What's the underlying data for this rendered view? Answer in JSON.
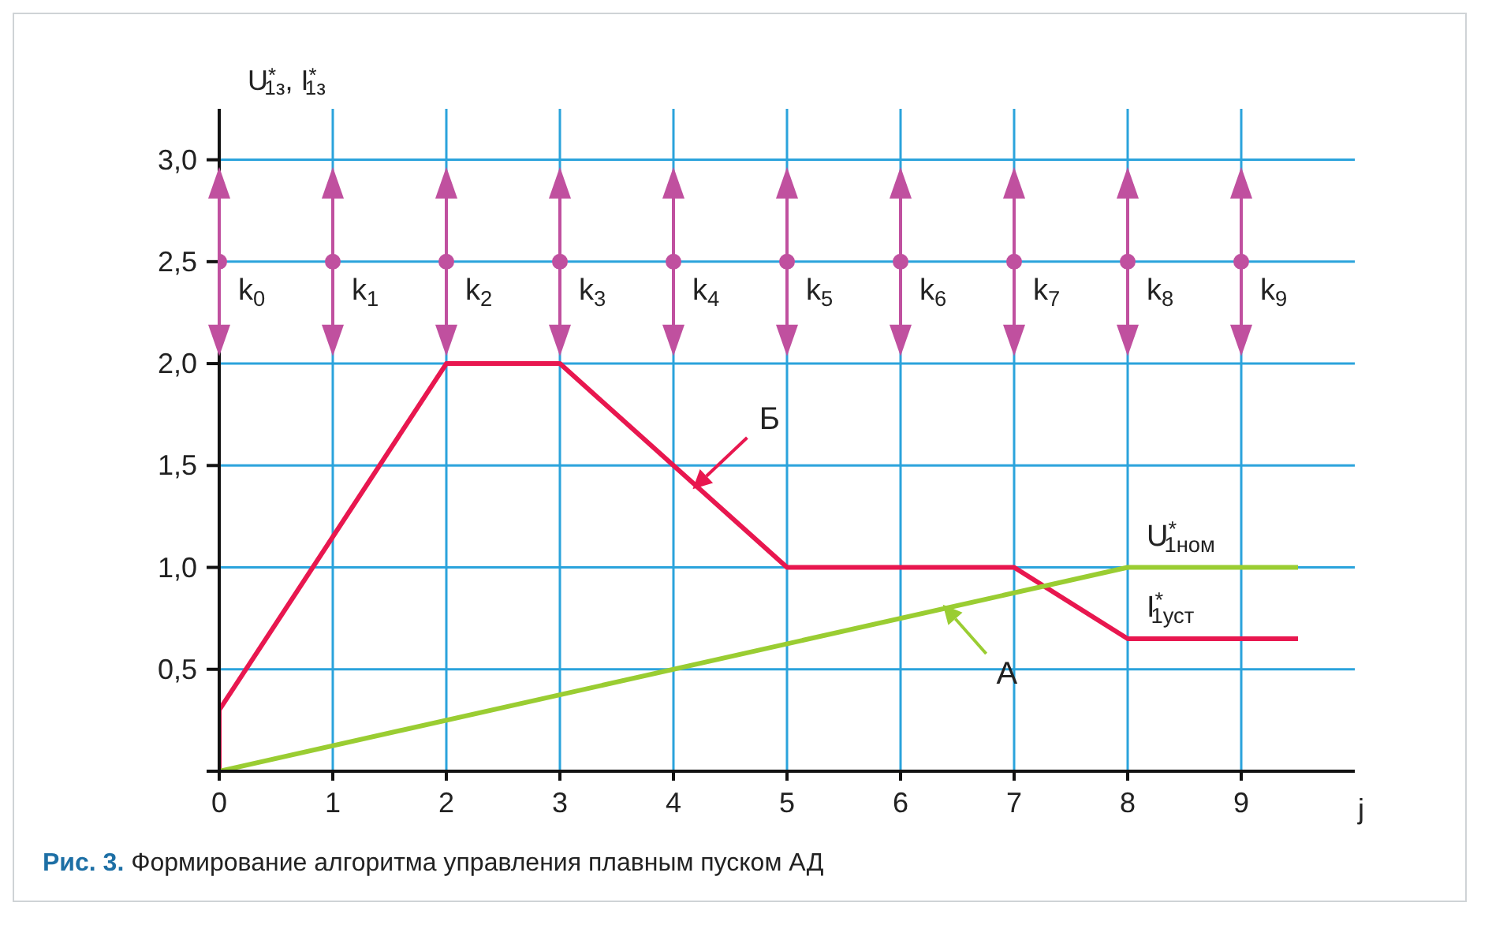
{
  "chart_data": {
    "type": "line",
    "xlabel": "j",
    "ylabel": "U$^{*}$$_{1з}$, I$^{*}$$_{1з}$",
    "xlim": [
      0,
      10
    ],
    "xticks": [
      0,
      1,
      2,
      3,
      4,
      5,
      6,
      7,
      8,
      9
    ],
    "ylim": [
      0,
      3.25
    ],
    "yticks": [
      {
        "value": 0,
        "label": null
      },
      {
        "value": 0.5,
        "label": "0,5"
      },
      {
        "value": 1,
        "label": "1,0"
      },
      {
        "value": 1.5,
        "label": "1,5"
      },
      {
        "value": 2,
        "label": "2,0"
      },
      {
        "value": 2.5,
        "label": "2,5"
      },
      {
        "value": 3,
        "label": "3,0"
      }
    ],
    "grid": true,
    "series": [
      {
        "name": "Б",
        "type": "line",
        "color": "#e8174f",
        "x": [
          0,
          0,
          2,
          3,
          5,
          7,
          8,
          9.5
        ],
        "values": [
          0,
          0.3,
          2,
          2,
          1,
          1,
          0.65,
          0.65
        ]
      },
      {
        "name": "А",
        "type": "line",
        "color": "#9acd32",
        "x": [
          0,
          8,
          9.5
        ],
        "values": [
          0,
          1,
          1
        ]
      },
      {
        "type": "scatter",
        "color": "#c0509f",
        "marker": "circle",
        "x": [
          0,
          1,
          2,
          3,
          4,
          5,
          6,
          7,
          8,
          9
        ],
        "values": [
          2.5,
          2.5,
          2.5,
          2.5,
          2.5,
          2.5,
          2.5,
          2.5,
          2.5,
          2.5
        ]
      }
    ],
    "annotations": [
      {
        "text": "k$_{0}$",
        "x": 0,
        "y": 2.5
      },
      {
        "text": "k$_{1}$",
        "x": 1,
        "y": 2.5
      },
      {
        "text": "k$_{2}$",
        "x": 2,
        "y": 2.5
      },
      {
        "text": "k$_{3}$",
        "x": 3,
        "y": 2.5
      },
      {
        "text": "k$_{4}$",
        "x": 4,
        "y": 2.5
      },
      {
        "text": "k$_{5}$",
        "x": 5,
        "y": 2.5
      },
      {
        "text": "k$_{6}$",
        "x": 6,
        "y": 2.5
      },
      {
        "text": "k$_{7}$",
        "x": 7,
        "y": 2.5
      },
      {
        "text": "k$_{8}$",
        "x": 8,
        "y": 2.5
      },
      {
        "text": "k$_{9}$",
        "x": 9,
        "y": 2.5
      },
      {
        "text": "U$^{*}$$_{1ном}$",
        "x": 8,
        "y": 1
      },
      {
        "text": "I$^{*}$$_{1уст}$",
        "x": 8,
        "y": 0.65
      },
      "Рис. 3. Формирование алгоритма управления плавным пуском АД"
    ]
  }
}
